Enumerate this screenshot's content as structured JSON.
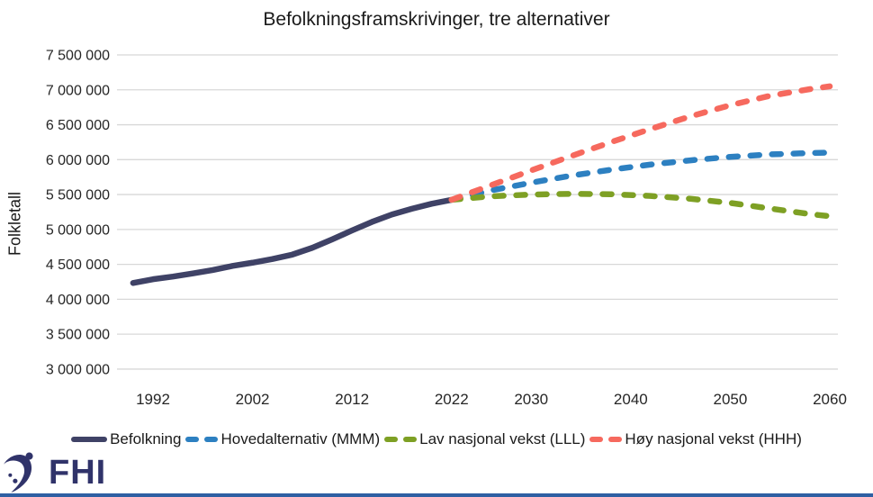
{
  "title": "Befolkningsframskrivinger, tre alternativer",
  "y_axis_title": "Folkletall",
  "logo": {
    "text": "FHI",
    "color": "#30336a"
  },
  "footer_bar_color": "#2e5fa3",
  "colors": {
    "befolkning": "#3f4266",
    "mmm": "#2d80c1",
    "lll": "#7ea024",
    "hhh": "#f6695e",
    "gridline": "#d8d8d8",
    "tick_text": "#262626"
  },
  "legend": [
    {
      "label": "Befolkning",
      "color": "#3f4266",
      "style": "solid"
    },
    {
      "label": "Hovedalternativ (MMM)",
      "color": "#2d80c1",
      "style": "dashed"
    },
    {
      "label": "Lav nasjonal vekst (LLL)",
      "color": "#7ea024",
      "style": "dashed"
    },
    {
      "label": "Høy nasjonal vekst (HHH)",
      "color": "#f6695e",
      "style": "dashed"
    }
  ],
  "chart_data": {
    "type": "line",
    "title": "Befolkningsframskrivinger, tre alternativer",
    "xlabel": "",
    "ylabel": "Folkletall",
    "ylim": [
      3000000,
      7500000
    ],
    "ytick_step": 500000,
    "ytick_labels": [
      "7 500 000",
      "7 000 000",
      "6 500 000",
      "6 000 000",
      "5 500 000",
      "5 000 000",
      "4 500 000",
      "4 000 000",
      "3 500 000",
      "3 000 000"
    ],
    "xticks": [
      1992,
      2002,
      2012,
      2022,
      2030,
      2040,
      2050,
      2060
    ],
    "grid": true,
    "legend_position": "bottom",
    "series": [
      {
        "name": "Befolkning",
        "style": "solid",
        "color": "#3f4266",
        "x": [
          1990,
          1992,
          1994,
          1996,
          1998,
          2000,
          2002,
          2004,
          2006,
          2008,
          2010,
          2012,
          2014,
          2016,
          2018,
          2020,
          2022
        ],
        "y": [
          4233000,
          4287000,
          4325000,
          4370000,
          4418000,
          4478000,
          4524000,
          4577000,
          4640000,
          4737000,
          4858000,
          4986000,
          5108000,
          5214000,
          5296000,
          5368000,
          5425000
        ]
      },
      {
        "name": "Hovedalternativ (MMM)",
        "style": "dashed",
        "color": "#2d80c1",
        "x": [
          2022,
          2026,
          2030,
          2034,
          2038,
          2042,
          2046,
          2050,
          2054,
          2058,
          2060
        ],
        "y": [
          5425000,
          5560000,
          5670000,
          5770000,
          5855000,
          5930000,
          5990000,
          6040000,
          6075000,
          6095000,
          6100000
        ]
      },
      {
        "name": "Lav nasjonal vekst (LLL)",
        "style": "dashed",
        "color": "#7ea024",
        "x": [
          2022,
          2026,
          2030,
          2034,
          2038,
          2042,
          2046,
          2050,
          2054,
          2058,
          2060
        ],
        "y": [
          5425000,
          5475000,
          5500000,
          5510000,
          5505000,
          5480000,
          5440000,
          5380000,
          5300000,
          5220000,
          5190000
        ]
      },
      {
        "name": "Høy nasjonal vekst (HHH)",
        "style": "dashed",
        "color": "#f6695e",
        "x": [
          2022,
          2026,
          2030,
          2034,
          2038,
          2042,
          2046,
          2050,
          2054,
          2058,
          2060
        ],
        "y": [
          5425000,
          5635000,
          5845000,
          6050000,
          6250000,
          6440000,
          6620000,
          6780000,
          6915000,
          7010000,
          7050000
        ]
      }
    ]
  }
}
